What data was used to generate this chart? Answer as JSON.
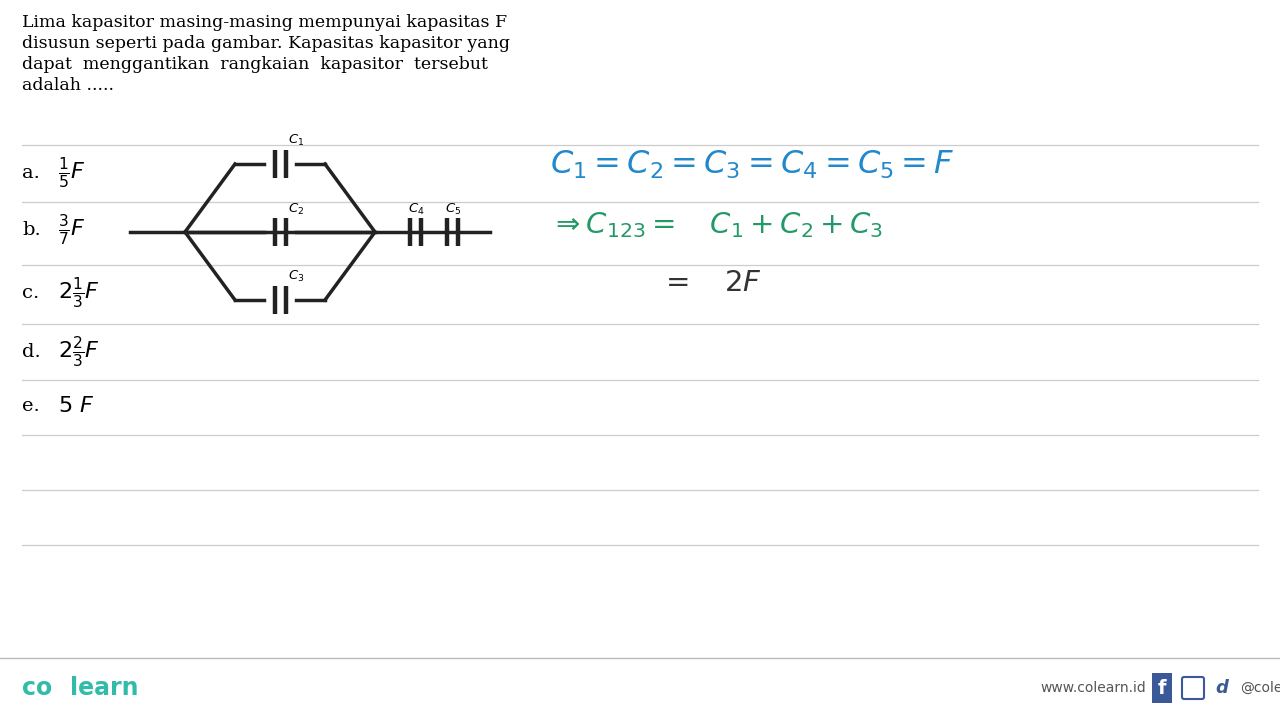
{
  "bg_color": "#ffffff",
  "title_lines": [
    "Lima kapasitor masing-masing mempunyai kapasitas F",
    "disusun seperti pada gambar. Kapasitas kapasitor yang",
    "dapat  menggantikan  rangkaian  kapasitor  tersebut",
    "adalah ....."
  ],
  "options": [
    {
      "label": "a.",
      "math": "\\frac{1}{5}F"
    },
    {
      "label": "b.",
      "math": "\\frac{3}{7}F"
    },
    {
      "label": "c.",
      "math": "2\\frac{1}{3}F"
    },
    {
      "label": "d.",
      "math": "2\\frac{2}{3}F"
    },
    {
      "label": "e.",
      "math": "5\\ F"
    }
  ],
  "eq1_color": "#2288cc",
  "eq2_color": "#229966",
  "eq3_color": "#333333",
  "line_color": "#cccccc",
  "circuit_color": "#222222",
  "footer_teal": "#33bbaa"
}
